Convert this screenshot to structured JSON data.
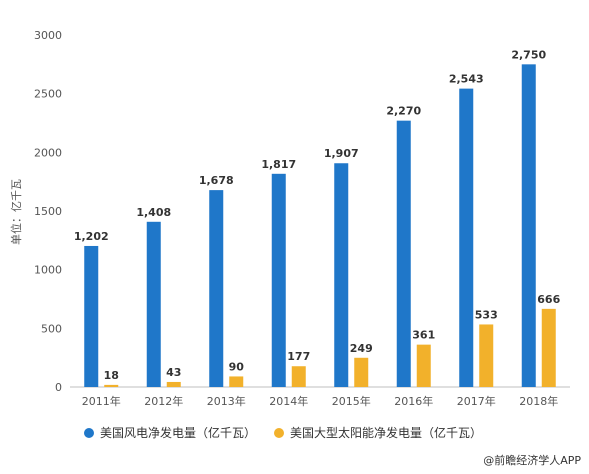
{
  "chart_data": {
    "type": "bar",
    "categories": [
      "2011年",
      "2012年",
      "2013年",
      "2014年",
      "2015年",
      "2016年",
      "2017年",
      "2018年"
    ],
    "series": [
      {
        "name": "美国风电净发电量（亿千瓦）",
        "color": "#1f77c9",
        "values": [
          1202,
          1408,
          1678,
          1817,
          1907,
          2270,
          2543,
          2750
        ]
      },
      {
        "name": "美国大型太阳能净发电量（亿千瓦）",
        "color": "#f2b12b",
        "values": [
          18,
          43,
          90,
          177,
          249,
          361,
          533,
          666
        ]
      }
    ],
    "data_labels": [
      [
        "1,202",
        "1,408",
        "1,678",
        "1,817",
        "1,907",
        "2,270",
        "2,543",
        "2,750"
      ],
      [
        "18",
        "43",
        "90",
        "177",
        "249",
        "361",
        "533",
        "666"
      ]
    ],
    "ylabel": "单位：亿千瓦",
    "ylim": [
      0,
      3000
    ],
    "yticks": [
      0,
      500,
      1000,
      1500,
      2000,
      2500,
      3000
    ],
    "grid": false,
    "legend_position": "bottom"
  },
  "source": "@前瞻经济学人APP"
}
